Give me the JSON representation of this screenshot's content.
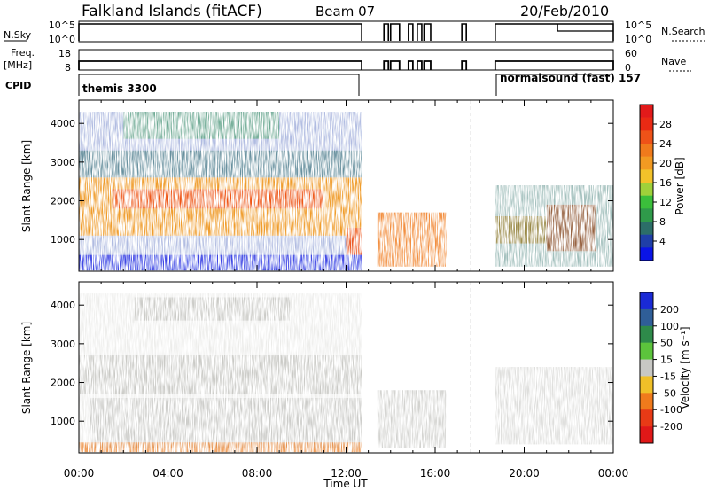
{
  "header": {
    "title": "Falkland Islands (fitACF)",
    "beam": "Beam 07",
    "date": "20/Feb/2010"
  },
  "status_panels": {
    "nsky_label": "N.Sky",
    "nsky_ticks": [
      "10^5",
      "10^0"
    ],
    "nsearch_label": "N.Search",
    "nsearch_ticks": [
      "10^5",
      "10^0"
    ],
    "freq_label": "Freq.",
    "freq_unit": "[MHz]",
    "freq_ticks": [
      "18",
      "8"
    ],
    "nave_label": "Nave",
    "nave_ticks": [
      "60",
      "0"
    ],
    "cpid_label": "CPID",
    "cpid_left": "themis 3300",
    "cpid_right": "normalsound (fast) 157"
  },
  "x_axis": {
    "label": "Time UT",
    "ticks": [
      "00:00",
      "04:00",
      "08:00",
      "12:00",
      "16:00",
      "20:00",
      "00:00"
    ]
  },
  "power_panel": {
    "ylabel": "Slant Range [km]",
    "yticks": [
      "1000",
      "2000",
      "3000",
      "4000"
    ],
    "cbar_label": "Power [dB]",
    "cbar_ticks": [
      "4",
      "8",
      "12",
      "16",
      "20",
      "24",
      "28"
    ],
    "cbar_colors": [
      "#0a14e6",
      "#1f3fa8",
      "#2c6e68",
      "#2f9a4a",
      "#3bbf3b",
      "#9fd13a",
      "#f2c22a",
      "#f29a22",
      "#f07a1c",
      "#ee5218",
      "#ea2a14",
      "#e21a1a"
    ]
  },
  "velocity_panel": {
    "ylabel": "Slant Range [km]",
    "yticks": [
      "1000",
      "2000",
      "3000",
      "4000"
    ],
    "cbar_label": "Velocity [m s⁻¹]",
    "cbar_ticks": [
      "200",
      "100",
      "50",
      "15",
      "-15",
      "-50",
      "-100",
      "-200"
    ],
    "cbar_colors": [
      "#1a2ad6",
      "#2f5e98",
      "#2e8a4a",
      "#5cc43c",
      "#c8c8c4",
      "#f0c028",
      "#f07a1c",
      "#e83a16",
      "#e01818"
    ]
  },
  "chart_data": {
    "type": "heatmap",
    "title": "Falkland Islands (fitACF)",
    "xlabel": "Time UT",
    "ylabel": "Slant Range [km]",
    "xlim": [
      "00:00",
      "24:00"
    ],
    "ylim": [
      180,
      4600
    ],
    "data_gaps_ut": [
      [
        12.7,
        13.4
      ],
      [
        16.5,
        18.7
      ]
    ],
    "cpid_segments": [
      {
        "name": "themis 3300",
        "start_ut": 0.0,
        "end_ut": 12.7
      },
      {
        "name": "normalsound (fast) 157",
        "start_ut": 18.7,
        "end_ut": 24.0
      }
    ],
    "power_regions": [
      {
        "t0": 0.0,
        "t1": 12.7,
        "r0": 1100,
        "r1": 2600,
        "power_db": 20
      },
      {
        "t0": 1.5,
        "t1": 11.0,
        "r0": 1800,
        "r1": 2300,
        "power_db": 24
      },
      {
        "t0": 12.0,
        "t1": 12.7,
        "r0": 600,
        "r1": 1300,
        "power_db": 26
      },
      {
        "t0": 18.7,
        "t1": 21.0,
        "r0": 900,
        "r1": 1600,
        "power_db": 20
      },
      {
        "t0": 21.0,
        "t1": 23.2,
        "r0": 700,
        "r1": 1900,
        "power_db": 26
      }
    ],
    "velocity_dominant_range": [
      -15,
      15
    ]
  }
}
